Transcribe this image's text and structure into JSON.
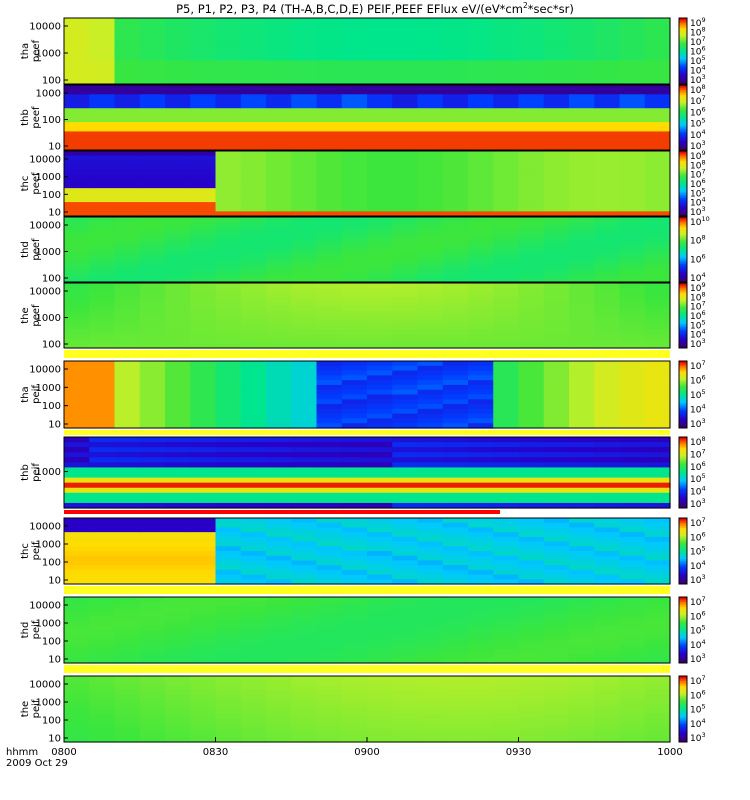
{
  "chart_data": {
    "type": "heatmap",
    "title": "P5, P1, P2, P3, P4 (TH-A,B,C,D,E) PEIF,PEEF EFlux eV/(eV*cm",
    "title_sup": "2",
    "title_tail": "*sec*sr)",
    "x_ticks": [
      "0800",
      "0830",
      "0900",
      "0930",
      "1000"
    ],
    "xlim": [
      "0800",
      "1000"
    ],
    "x_label_1": "hhmm",
    "x_label_2": "2009 Oct 29",
    "y_scale": "log",
    "colorscale": "rainbow",
    "panels": [
      {
        "name": "thа peef",
        "ylabel1": "tha",
        "ylabel2": "peef",
        "yticks": [
          "10000",
          "1000",
          "100"
        ],
        "cbar": [
          "10",
          "10",
          "10",
          "10",
          "10",
          "10",
          "10"
        ],
        "cbar_exp": [
          "9",
          "8",
          "7",
          "6",
          "5",
          "4",
          "3"
        ]
      },
      {
        "name": "thb peef",
        "ylabel1": "thb",
        "ylabel2": "peef",
        "yticks": [
          "1000",
          "100",
          "10"
        ],
        "cbar": [
          "10",
          "10",
          "10",
          "10",
          "10",
          "10"
        ],
        "cbar_exp": [
          "8",
          "7",
          "6",
          "5",
          "4",
          "3"
        ]
      },
      {
        "name": "thc peef",
        "ylabel1": "thc",
        "ylabel2": "peef",
        "yticks": [
          "10000",
          "1000",
          "100",
          "10"
        ],
        "cbar": [
          "10",
          "10",
          "10",
          "10",
          "10",
          "10",
          "10"
        ],
        "cbar_exp": [
          "9",
          "8",
          "7",
          "6",
          "5",
          "4",
          "3"
        ]
      },
      {
        "name": "thd peef",
        "ylabel1": "thd",
        "ylabel2": "peef",
        "yticks": [
          "10000",
          "1000",
          "100"
        ],
        "cbar": [
          "10",
          "10",
          "10",
          "10"
        ],
        "cbar_exp": [
          "10",
          "8",
          "6",
          "4"
        ]
      },
      {
        "name": "the peef",
        "ylabel1": "the",
        "ylabel2": "peef",
        "yticks": [
          "10000",
          "1000",
          "100"
        ],
        "cbar": [
          "10",
          "10",
          "10",
          "10",
          "10",
          "10",
          "10"
        ],
        "cbar_exp": [
          "9",
          "8",
          "7",
          "6",
          "5",
          "4",
          "3"
        ]
      },
      {
        "name": "tha peif",
        "ylabel1": "tha",
        "ylabel2": "peif",
        "yticks": [
          "10000",
          "1000",
          "100",
          "10"
        ],
        "cbar": [
          "10",
          "10",
          "10",
          "10",
          "10"
        ],
        "cbar_exp": [
          "7",
          "6",
          "5",
          "4",
          "3"
        ]
      },
      {
        "name": "thb peif",
        "ylabel1": "thb",
        "ylabel2": "peif",
        "yticks": [
          "1000"
        ],
        "cbar": [
          "10",
          "10",
          "10",
          "10",
          "10",
          "10"
        ],
        "cbar_exp": [
          "8",
          "7",
          "6",
          "5",
          "4",
          "3"
        ]
      },
      {
        "name": "thc peif",
        "ylabel1": "thc",
        "ylabel2": "peif",
        "yticks": [
          "10000",
          "1000",
          "100",
          "10"
        ],
        "cbar": [
          "10",
          "10",
          "10",
          "10",
          "10"
        ],
        "cbar_exp": [
          "7",
          "6",
          "5",
          "4",
          "3"
        ]
      },
      {
        "name": "thd peif",
        "ylabel1": "thd",
        "ylabel2": "peif",
        "yticks": [
          "10000",
          "1000",
          "100",
          "10"
        ],
        "cbar": [
          "10",
          "10",
          "10",
          "10",
          "10"
        ],
        "cbar_exp": [
          "7",
          "6",
          "5",
          "4",
          "3"
        ]
      },
      {
        "name": "the peif",
        "ylabel1": "the",
        "ylabel2": "peif",
        "yticks": [
          "10000",
          "1000",
          "100",
          "10"
        ],
        "cbar": [
          "10",
          "10",
          "10",
          "10",
          "10"
        ],
        "cbar_exp": [
          "7",
          "6",
          "5",
          "4",
          "3"
        ]
      }
    ]
  }
}
